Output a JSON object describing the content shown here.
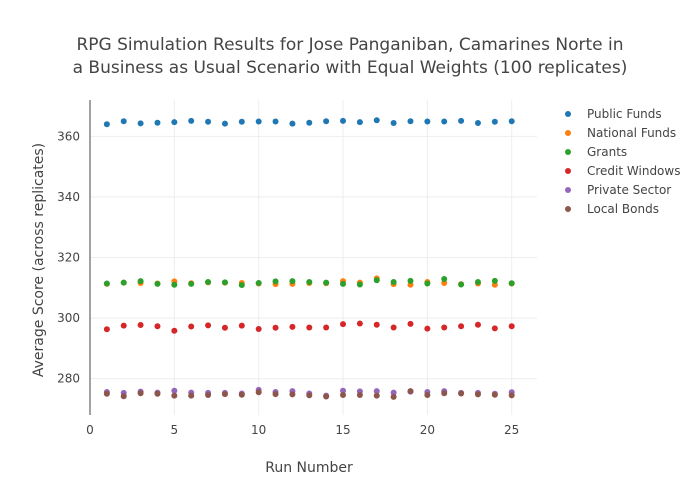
{
  "chart_data": {
    "type": "scatter",
    "title_lines": [
      "RPG Simulation Results for Jose Panganiban, Camarines Norte in",
      "a Business as Usual Scenario with Equal Weights (100 replicates)"
    ],
    "xlabel": "Run Number",
    "ylabel": "Average Score (across replicates)",
    "xlim": [
      0,
      26.5
    ],
    "ylim": [
      268,
      372
    ],
    "xticks": [
      0,
      5,
      10,
      15,
      20,
      25
    ],
    "yticks": [
      280,
      300,
      320,
      340,
      360
    ],
    "grid": true,
    "legend_position": "top-right",
    "x": [
      1,
      2,
      3,
      4,
      5,
      6,
      7,
      8,
      9,
      10,
      11,
      12,
      13,
      14,
      15,
      16,
      17,
      18,
      19,
      20,
      21,
      22,
      23,
      24,
      25
    ],
    "series": [
      {
        "name": "Public Funds",
        "color": "#1f77b4",
        "values": [
          364.0,
          365.0,
          364.3,
          364.5,
          364.7,
          365.1,
          364.8,
          364.2,
          364.8,
          364.9,
          364.9,
          364.2,
          364.5,
          365.0,
          365.1,
          364.7,
          365.3,
          364.4,
          365.0,
          364.9,
          364.9,
          365.1,
          364.4,
          364.8,
          365.0
        ]
      },
      {
        "name": "National Funds",
        "color": "#ff7f0e",
        "values": [
          311.3,
          311.7,
          311.6,
          311.4,
          312.1,
          311.5,
          311.8,
          311.7,
          311.6,
          311.4,
          311.2,
          311.3,
          311.6,
          311.5,
          312.2,
          311.7,
          313.1,
          311.2,
          311.0,
          311.9,
          311.6,
          311.2,
          311.4,
          311.0,
          311.4
        ]
      },
      {
        "name": "Grants",
        "color": "#2ca02c",
        "values": [
          311.4,
          311.7,
          312.2,
          311.3,
          311.0,
          311.3,
          311.9,
          311.8,
          310.9,
          311.6,
          312.1,
          312.2,
          311.9,
          311.7,
          311.3,
          311.1,
          312.5,
          311.9,
          312.3,
          311.4,
          312.9,
          311.1,
          311.9,
          312.3,
          311.5
        ]
      },
      {
        "name": "Credit Windows",
        "color": "#d62728",
        "values": [
          296.3,
          297.5,
          297.7,
          297.3,
          295.8,
          297.2,
          297.6,
          296.8,
          297.5,
          296.4,
          296.8,
          297.1,
          296.9,
          296.9,
          298.0,
          298.2,
          297.8,
          296.9,
          298.1,
          296.5,
          296.9,
          297.3,
          297.8,
          296.6,
          297.3
        ]
      },
      {
        "name": "Private Sector",
        "color": "#9467bd",
        "values": [
          275.6,
          275.3,
          275.7,
          275.4,
          276.0,
          275.4,
          275.3,
          275.3,
          275.1,
          276.3,
          275.6,
          275.9,
          275.1,
          274.4,
          276.0,
          275.8,
          275.9,
          275.4,
          275.7,
          275.6,
          275.9,
          275.3,
          275.3,
          275.0,
          275.5
        ]
      },
      {
        "name": "Local Bonds",
        "color": "#8c564b",
        "values": [
          275.0,
          274.2,
          275.2,
          275.0,
          274.4,
          274.4,
          274.6,
          274.9,
          274.7,
          275.5,
          274.9,
          274.8,
          274.5,
          274.1,
          274.6,
          274.6,
          274.4,
          274.0,
          275.9,
          274.6,
          275.2,
          275.1,
          274.8,
          274.7,
          274.5
        ]
      }
    ]
  }
}
